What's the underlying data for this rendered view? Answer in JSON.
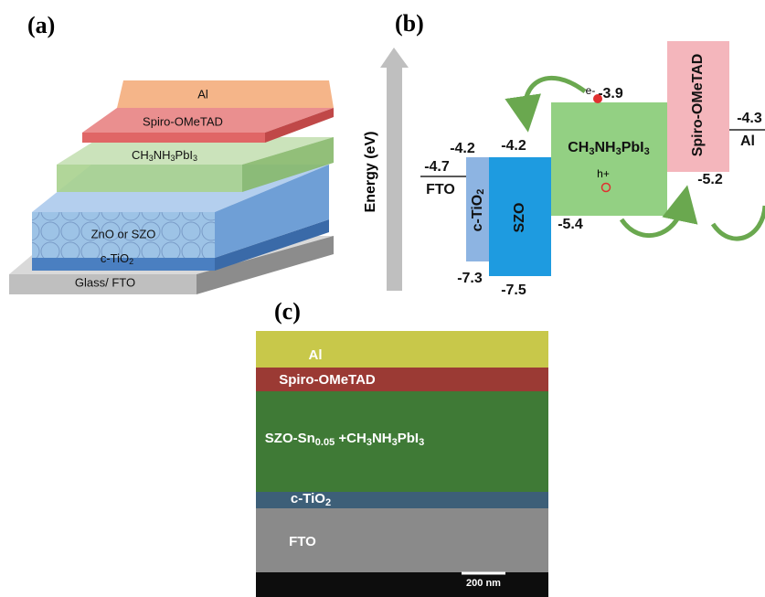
{
  "panel_a": {
    "label": "(a)",
    "layers": [
      "Al",
      "Spiro-OMeTAD",
      "ZnO or SZO",
      "Glass/ FTO"
    ],
    "perovskite": [
      "CH",
      "3",
      "NH",
      "3",
      "PbI",
      "3"
    ],
    "tio2": [
      "c-TiO",
      "2"
    ]
  },
  "panel_b": {
    "label": "(b)",
    "axis_label": "Energy (eV)",
    "fto": {
      "name": "FTO",
      "level": "-4.7"
    },
    "tio2": {
      "name": [
        "c-TiO",
        "2"
      ],
      "cb": "-4.2",
      "vb": "-7.3"
    },
    "szo": {
      "name": "SZO",
      "cb": "-4.2",
      "vb": "-7.5"
    },
    "perovskite": {
      "name": [
        "CH",
        "3",
        "NH",
        "3",
        "PbI",
        "3"
      ],
      "cb": "-3.9",
      "vb": "-5.4"
    },
    "electron": "e-",
    "hole": "h+",
    "spiro": {
      "name": "Spiro-OMeTAD",
      "vb": "-5.2"
    },
    "al": {
      "name": "Al",
      "level": "-4.3"
    }
  },
  "panel_c": {
    "label": "(c)",
    "layers": [
      "Al",
      "Spiro-OMeTAD",
      "FTO"
    ],
    "perovskite": [
      "SZO-Sn",
      "0.05",
      " +CH",
      "3",
      "NH",
      "3",
      "PbI",
      "3"
    ],
    "tio2": [
      "c-TiO",
      "2"
    ],
    "scale": "200 nm"
  }
}
